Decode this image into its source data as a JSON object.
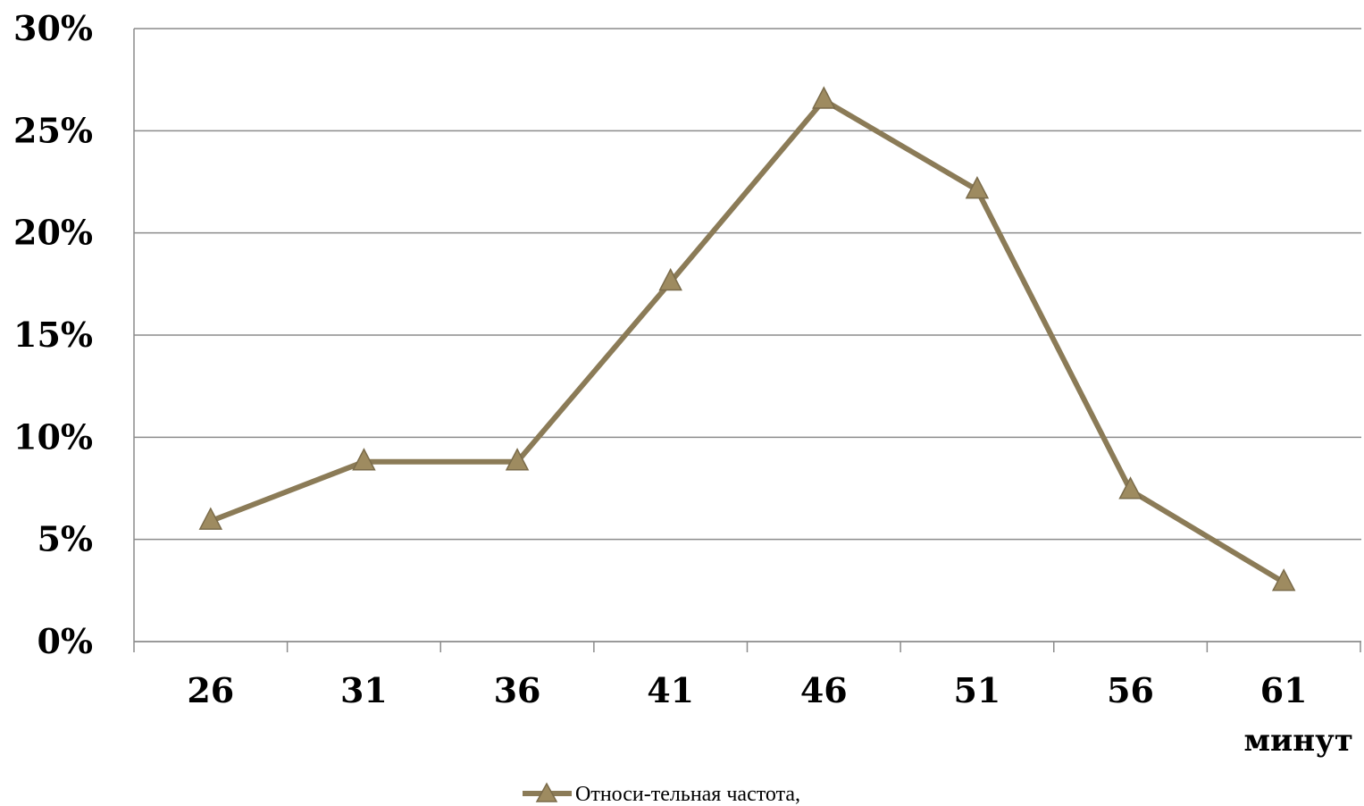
{
  "chart_data": {
    "type": "line",
    "x": [
      "26",
      "31",
      "36",
      "41",
      "46",
      "51",
      "56",
      "61"
    ],
    "series": [
      {
        "name": "Относи-тельная частота,",
        "values": [
          5.9,
          8.8,
          8.8,
          17.6,
          26.5,
          22.1,
          7.4,
          2.9
        ],
        "color": "#8B7B57",
        "marker": "triangle"
      }
    ],
    "ylim": [
      0,
      30
    ],
    "y_ticks": [
      "0%",
      "5%",
      "10%",
      "15%",
      "20%",
      "25%",
      "30%"
    ],
    "xlabel": "минут",
    "ylabel": "",
    "title": "",
    "grid": true,
    "legend_position": "bottom"
  }
}
